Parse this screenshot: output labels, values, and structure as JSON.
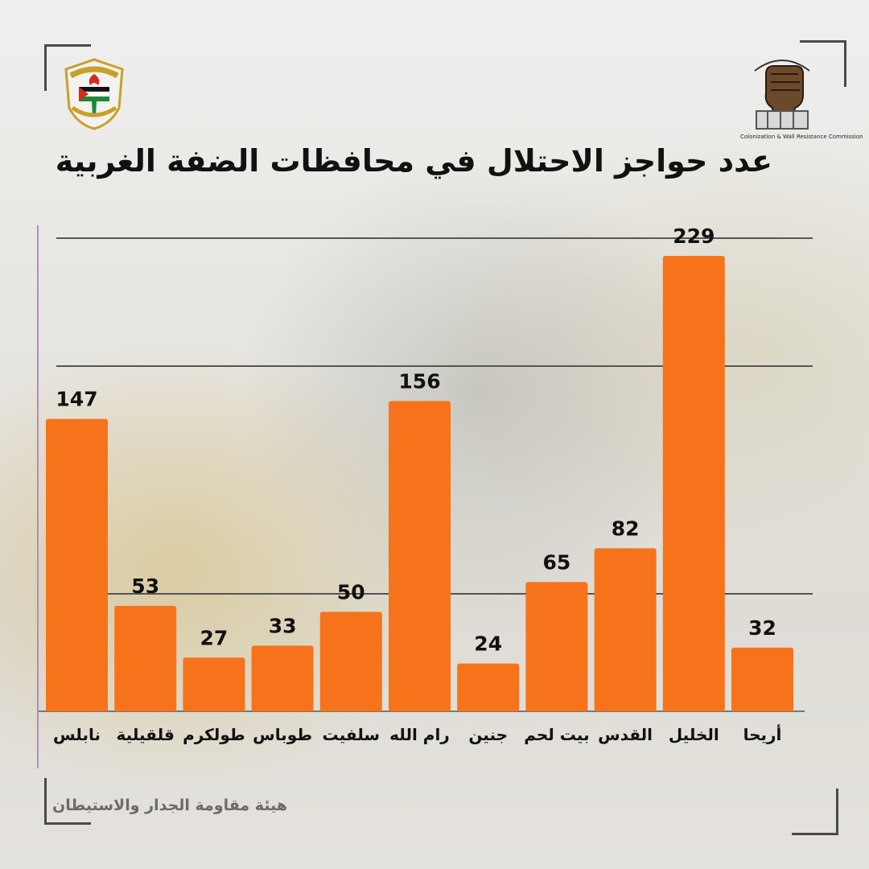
{
  "title": "عدد حواجز الاحتلال في محافظات الضفة الغربية",
  "footer": "هيئة مقاومة الجدار والاستيطان",
  "logos": {
    "left": "plo-emblem",
    "right": "fist-logo",
    "right_caption": "Colonization & Wall Resistance Commission"
  },
  "colors": {
    "bar": "#f7731b",
    "gridline": "#555555",
    "title": "#111111"
  },
  "chart_data": {
    "type": "bar",
    "categories": [
      "نابلس",
      "قلقيلية",
      "طولكرم",
      "طوباس",
      "سلفيت",
      "رام الله",
      "جنين",
      "بيت لحم",
      "القدس",
      "الخليل",
      "أريحا"
    ],
    "values": [
      147,
      53,
      27,
      33,
      50,
      156,
      24,
      65,
      82,
      229,
      32
    ],
    "title": "عدد حواجز الاحتلال في محافظات الضفة الغربية",
    "xlabel": "",
    "ylabel": "",
    "ylim": [
      0,
      250
    ],
    "grid": true,
    "legend": "none"
  }
}
